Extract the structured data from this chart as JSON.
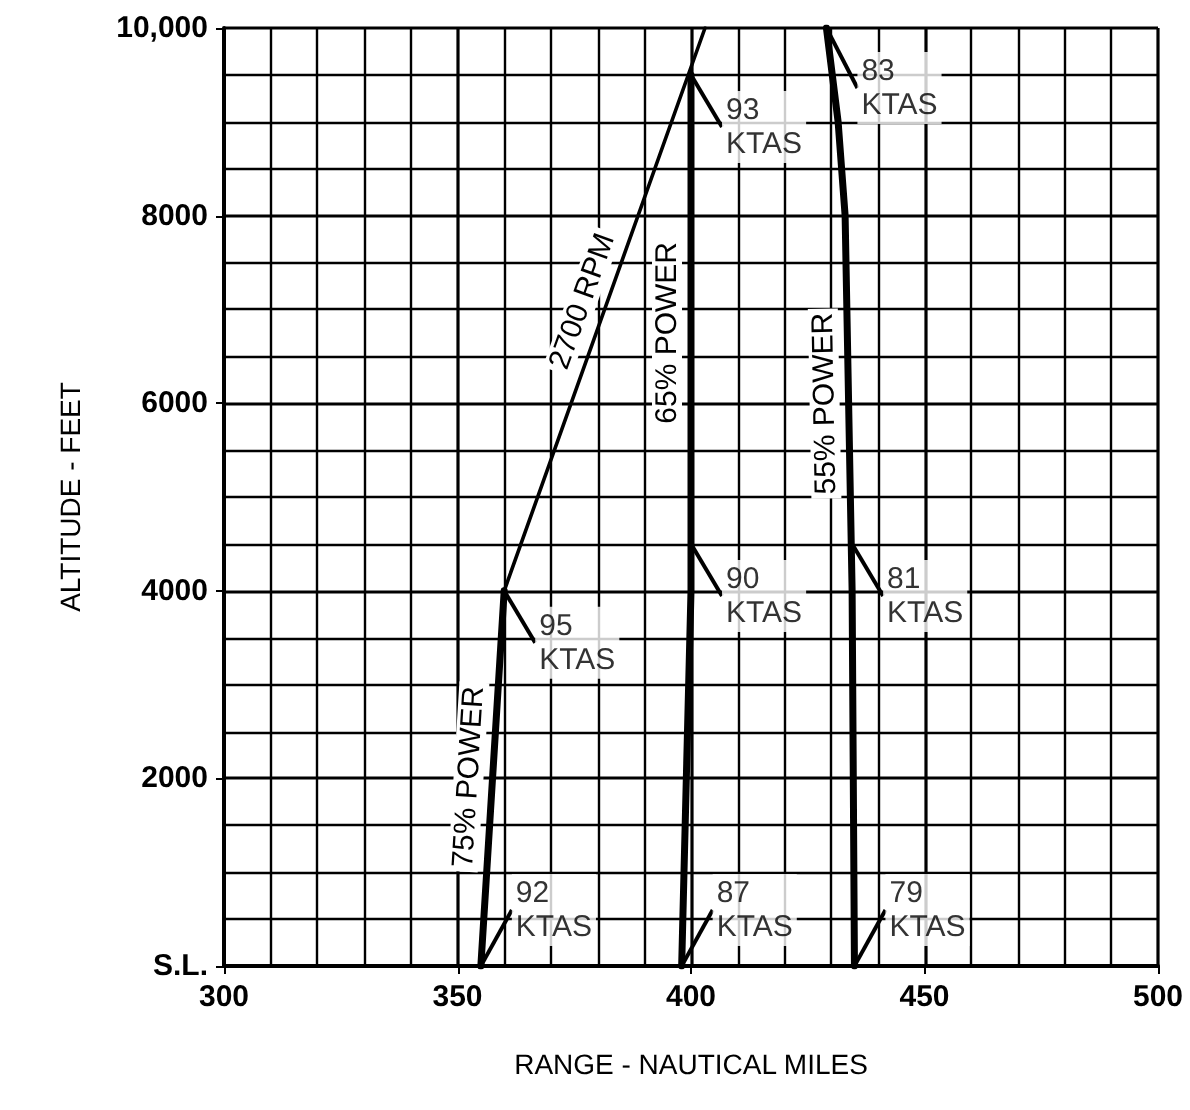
{
  "chart_data": {
    "type": "line",
    "xlabel": "RANGE - NAUTICAL MILES",
    "ylabel": "ALTITUDE - FEET",
    "xlim": [
      300,
      500
    ],
    "xticks": [
      300,
      350,
      400,
      450,
      500
    ],
    "ylim": [
      0,
      10000
    ],
    "yticks": [
      {
        "value": 0,
        "label": "S.L."
      },
      2000,
      4000,
      6000,
      8000,
      {
        "value": 10000,
        "label": "10,000"
      }
    ],
    "grid": true,
    "marker": "none",
    "line_style": "solid",
    "legend": false,
    "series": [
      {
        "name": "75% POWER",
        "color": "#000000",
        "x": [
          355,
          360
        ],
        "values": [
          0,
          4000
        ]
      },
      {
        "name": "65% POWER",
        "color": "#000000",
        "x": [
          398,
          399,
          400,
          400
        ],
        "values": [
          0,
          2000,
          4000,
          9500
        ]
      },
      {
        "name": "55% POWER",
        "color": "#000000",
        "x": [
          435,
          434.5,
          433,
          431.5,
          429
        ],
        "values": [
          0,
          4000,
          8000,
          9000,
          10000
        ]
      },
      {
        "name": "2700 RPM",
        "color": "#000000",
        "x": [
          360,
          403
        ],
        "values": [
          4000,
          10000
        ]
      }
    ],
    "annotations": [
      {
        "text": "95\nKTAS",
        "x": 360,
        "y": 4000
      },
      {
        "text": "92\nKTAS",
        "x": 355,
        "y": 0
      },
      {
        "text": "87\nKTAS",
        "x": 398,
        "y": 0
      },
      {
        "text": "79\nKTAS",
        "x": 435,
        "y": 0
      },
      {
        "text": "90\nKTAS",
        "x": 400,
        "y": 4500
      },
      {
        "text": "81\nKTAS",
        "x": 434.5,
        "y": 4500
      },
      {
        "text": "93\nKTAS",
        "x": 400,
        "y": 9500
      },
      {
        "text": "83\nKTAS",
        "x": 429,
        "y": 10000
      }
    ]
  }
}
